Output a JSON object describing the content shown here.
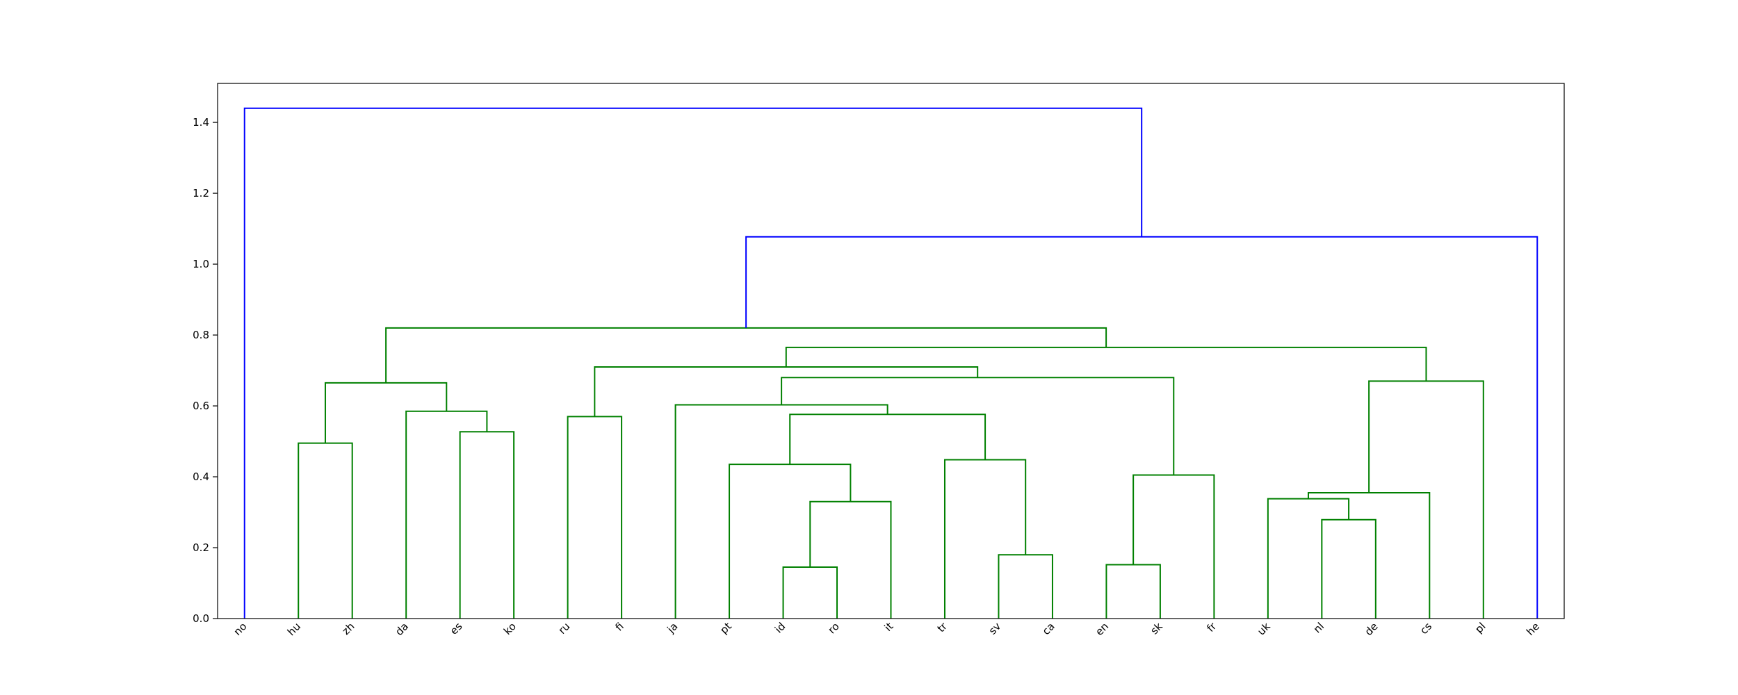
{
  "chart_data": {
    "type": "dendrogram",
    "title": "",
    "xlabel": "",
    "ylabel": "",
    "ylim": [
      0,
      1.51
    ],
    "yticks": [
      "0.0",
      "0.2",
      "0.4",
      "0.6",
      "0.8",
      "1.0",
      "1.2",
      "1.4"
    ],
    "leaves": [
      "no",
      "hu",
      "zh",
      "da",
      "es",
      "ko",
      "ru",
      "fi",
      "ja",
      "pt",
      "id",
      "ro",
      "it",
      "tr",
      "sv",
      "ca",
      "en",
      "sk",
      "fr",
      "uk",
      "nl",
      "de",
      "cs",
      "pl",
      "he"
    ],
    "colors": {
      "cluster": "#008000",
      "link": "#0000ff"
    },
    "merges": [
      {
        "a": "id",
        "b": "ro",
        "height": 0.145,
        "color": "cluster"
      },
      {
        "a": "en",
        "b": "sk",
        "height": 0.152,
        "color": "cluster"
      },
      {
        "a": "sv",
        "b": "ca",
        "height": 0.18,
        "color": "cluster"
      },
      {
        "a": "nl",
        "b": "de",
        "height": 0.279,
        "color": "cluster"
      },
      {
        "a": "id+ro",
        "b": "it",
        "height": 0.33,
        "color": "cluster"
      },
      {
        "a": "uk",
        "b": "nl+de",
        "height": 0.338,
        "color": "cluster"
      },
      {
        "a": "uk+nl+de",
        "b": "cs",
        "height": 0.355,
        "color": "cluster"
      },
      {
        "a": "en+sk",
        "b": "fr",
        "height": 0.405,
        "color": "cluster"
      },
      {
        "a": "pt",
        "b": "id+ro+it",
        "height": 0.435,
        "color": "cluster"
      },
      {
        "a": "tr",
        "b": "sv+ca",
        "height": 0.448,
        "color": "cluster"
      },
      {
        "a": "hu",
        "b": "zh",
        "height": 0.495,
        "color": "cluster"
      },
      {
        "a": "es",
        "b": "ko",
        "height": 0.527,
        "color": "cluster"
      },
      {
        "a": "ru",
        "b": "fi",
        "height": 0.57,
        "color": "cluster"
      },
      {
        "a": "pt..it",
        "b": "tr+sv+ca",
        "height": 0.576,
        "color": "cluster"
      },
      {
        "a": "da",
        "b": "es+ko",
        "height": 0.585,
        "color": "cluster"
      },
      {
        "a": "ja",
        "b": "pt..ca",
        "height": 0.603,
        "color": "cluster"
      },
      {
        "a": "hu+zh",
        "b": "da+es+ko",
        "height": 0.665,
        "color": "cluster"
      },
      {
        "a": "uk..cs",
        "b": "pl",
        "height": 0.67,
        "color": "cluster"
      },
      {
        "a": "ja..ca",
        "b": "en+sk+fr",
        "height": 0.68,
        "color": "cluster"
      },
      {
        "a": "ru+fi",
        "b": "ja..fr",
        "height": 0.71,
        "color": "cluster"
      },
      {
        "a": "ru..fr",
        "b": "uk..pl",
        "height": 0.765,
        "color": "cluster"
      },
      {
        "a": "hu..ko",
        "b": "ru..pl",
        "height": 0.82,
        "color": "cluster"
      },
      {
        "a": "hu..pl",
        "b": "he",
        "height": 1.077,
        "color": "link"
      },
      {
        "a": "no",
        "b": "hu..he",
        "height": 1.44,
        "color": "link"
      }
    ]
  }
}
